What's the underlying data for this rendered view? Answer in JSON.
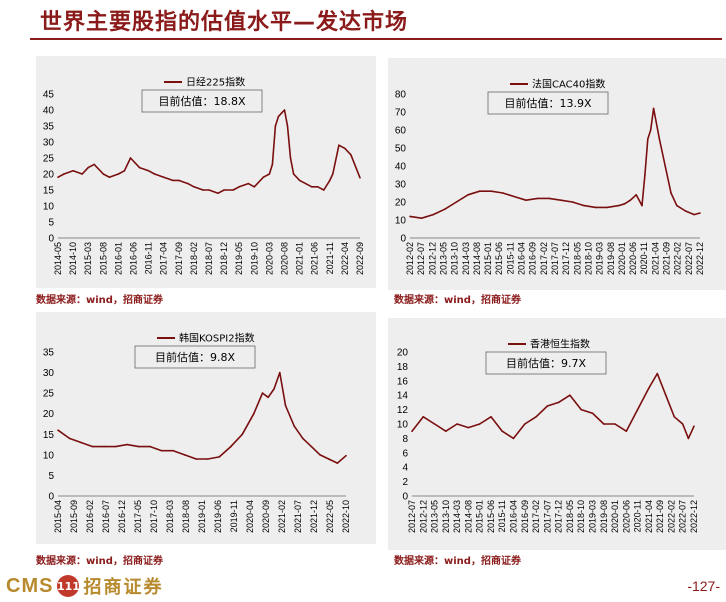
{
  "page": {
    "title": "世界主要股指的估值水平—发达市场",
    "page_number": "-127-",
    "logo_text_en": "CMS",
    "logo_badge": "111",
    "logo_text_cn": "招商证券"
  },
  "colors": {
    "accent": "#8b1a1a",
    "line": "#7a0f0f",
    "panel_bg": "#eeeeee",
    "logo_gold": "#b88a2e"
  },
  "chart_data": [
    {
      "type": "line",
      "legend": "日经225指数",
      "annotation": "目前估值：18.8X",
      "source": "数据来源：wind，招商证券",
      "ylim": [
        0,
        45
      ],
      "yticks": [
        "45",
        "40",
        "35",
        "30",
        "25",
        "20",
        "15",
        "10",
        "5",
        "0"
      ],
      "xticks": [
        "2014-05",
        "2014-10",
        "2015-03",
        "2015-08",
        "2016-01",
        "2016-06",
        "2016-11",
        "2017-04",
        "2017-09",
        "2018-02",
        "2018-07",
        "2018-12",
        "2019-05",
        "2019-10",
        "2020-03",
        "2020-08",
        "2021-01",
        "2021-06",
        "2021-11",
        "2022-04",
        "2022-09"
      ],
      "x": [
        0,
        0.02,
        0.05,
        0.08,
        0.1,
        0.12,
        0.15,
        0.17,
        0.2,
        0.22,
        0.24,
        0.27,
        0.3,
        0.32,
        0.35,
        0.38,
        0.4,
        0.43,
        0.45,
        0.48,
        0.5,
        0.53,
        0.55,
        0.58,
        0.6,
        0.63,
        0.65,
        0.68,
        0.7,
        0.71,
        0.72,
        0.73,
        0.74,
        0.75,
        0.76,
        0.77,
        0.78,
        0.8,
        0.82,
        0.84,
        0.86,
        0.88,
        0.9,
        0.91,
        0.93,
        0.95,
        0.97,
        1.0
      ],
      "values": [
        19,
        20,
        21,
        20,
        22,
        23,
        20,
        19,
        20,
        21,
        25,
        22,
        21,
        20,
        19,
        18,
        18,
        17,
        16,
        15,
        15,
        14,
        15,
        15,
        16,
        17,
        16,
        19,
        20,
        23,
        35,
        38,
        39,
        40,
        35,
        25,
        20,
        18,
        17,
        16,
        16,
        15,
        18,
        20,
        29,
        28,
        26,
        18.8
      ]
    },
    {
      "type": "line",
      "legend": "法国CAC40指数",
      "annotation": "目前估值：13.9X",
      "source": "数据来源：wind，招商证券",
      "ylim": [
        0,
        80
      ],
      "yticks": [
        "80",
        "70",
        "60",
        "50",
        "40",
        "30",
        "20",
        "10",
        "0"
      ],
      "xticks": [
        "2012-02",
        "2012-07",
        "2012-12",
        "2013-05",
        "2013-10",
        "2014-03",
        "2014-08",
        "2015-01",
        "2015-06",
        "2015-11",
        "2016-04",
        "2016-09",
        "2017-02",
        "2017-07",
        "2017-12",
        "2018-05",
        "2018-10",
        "2019-03",
        "2019-08",
        "2020-01",
        "2020-06",
        "2020-11",
        "2021-04",
        "2021-09",
        "2022-02",
        "2022-07",
        "2022-12"
      ],
      "x": [
        0,
        0.04,
        0.08,
        0.12,
        0.16,
        0.2,
        0.24,
        0.28,
        0.32,
        0.36,
        0.4,
        0.44,
        0.48,
        0.52,
        0.56,
        0.6,
        0.64,
        0.68,
        0.72,
        0.74,
        0.76,
        0.78,
        0.8,
        0.81,
        0.82,
        0.83,
        0.84,
        0.86,
        0.88,
        0.9,
        0.92,
        0.95,
        0.98,
        1.0
      ],
      "values": [
        12,
        11,
        13,
        16,
        20,
        24,
        26,
        26,
        25,
        23,
        21,
        22,
        22,
        21,
        20,
        18,
        17,
        17,
        18,
        19,
        21,
        24,
        18,
        35,
        55,
        60,
        72,
        55,
        40,
        25,
        18,
        15,
        13,
        13.9
      ]
    },
    {
      "type": "line",
      "legend": "韩国KOSPI2指数",
      "annotation": "目前估值：9.8X",
      "source": "数据来源：wind，招商证券",
      "ylim": [
        0,
        35
      ],
      "yticks": [
        "35",
        "30",
        "25",
        "20",
        "15",
        "10",
        "5",
        "0"
      ],
      "xticks": [
        "2015-04",
        "2015-09",
        "2016-02",
        "2016-07",
        "2016-12",
        "2017-05",
        "2017-10",
        "2018-03",
        "2018-08",
        "2019-01",
        "2019-06",
        "2019-11",
        "2020-04",
        "2020-09",
        "2021-02",
        "2021-07",
        "2021-12",
        "2022-05",
        "2022-10"
      ],
      "x": [
        0,
        0.04,
        0.08,
        0.12,
        0.16,
        0.2,
        0.24,
        0.28,
        0.32,
        0.36,
        0.4,
        0.44,
        0.48,
        0.52,
        0.56,
        0.6,
        0.64,
        0.68,
        0.71,
        0.73,
        0.75,
        0.77,
        0.79,
        0.82,
        0.85,
        0.88,
        0.91,
        0.94,
        0.97,
        1.0
      ],
      "values": [
        16,
        14,
        13,
        12,
        12,
        12,
        12.5,
        12,
        12,
        11,
        11,
        10,
        9,
        9,
        9.5,
        12,
        15,
        20,
        25,
        24,
        26,
        30,
        22,
        17,
        14,
        12,
        10,
        9,
        8,
        9.8
      ]
    },
    {
      "type": "line",
      "legend": "香港恒生指数",
      "annotation": "目前估值：9.7X",
      "source": "数据来源：wind，招商证券",
      "ylim": [
        0,
        20
      ],
      "yticks": [
        "20",
        "18",
        "16",
        "14",
        "12",
        "10",
        "8",
        "6",
        "4",
        "2",
        "0"
      ],
      "xticks": [
        "2012-07",
        "2012-12",
        "2013-05",
        "2013-10",
        "2014-03",
        "2014-08",
        "2015-01",
        "2015-06",
        "2015-11",
        "2016-04",
        "2016-09",
        "2017-02",
        "2017-07",
        "2017-12",
        "2018-05",
        "2018-10",
        "2019-03",
        "2019-08",
        "2020-01",
        "2020-06",
        "2020-11",
        "2021-04",
        "2021-09",
        "2022-02",
        "2022-07",
        "2022-12"
      ],
      "x": [
        0,
        0.04,
        0.08,
        0.12,
        0.16,
        0.2,
        0.24,
        0.28,
        0.32,
        0.36,
        0.4,
        0.44,
        0.48,
        0.52,
        0.56,
        0.6,
        0.64,
        0.68,
        0.72,
        0.76,
        0.8,
        0.84,
        0.87,
        0.9,
        0.93,
        0.96,
        0.98,
        1.0
      ],
      "values": [
        9,
        11,
        10,
        9,
        10,
        9.5,
        10,
        11,
        9,
        8,
        10,
        11,
        12.5,
        13,
        14,
        12,
        11.5,
        10,
        10,
        9,
        12,
        15,
        17,
        14,
        11,
        10,
        8,
        9.7
      ]
    }
  ]
}
